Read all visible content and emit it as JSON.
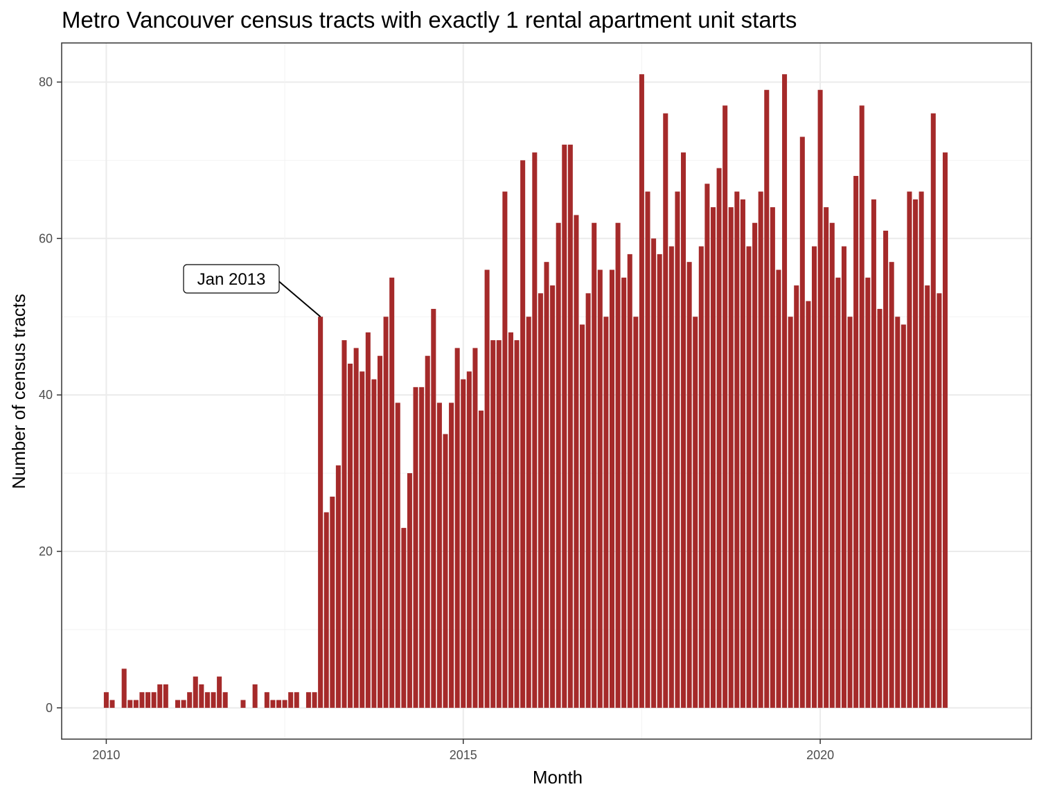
{
  "chart_data": {
    "type": "bar",
    "title": "Metro Vancouver census tracts with exactly 1 rental apartment unit starts",
    "xlabel": "Month",
    "ylabel": "Number of census tracts",
    "x_ticks": [
      "2010",
      "2015",
      "2020"
    ],
    "y_ticks": [
      "0",
      "20",
      "40",
      "60",
      "80"
    ],
    "ylim": [
      -4,
      85
    ],
    "xlim": [
      "2009-06",
      "2022-12"
    ],
    "grid": true,
    "bar_color": "#a52a2a",
    "start_month": "2010-01",
    "values": [
      2,
      1,
      0,
      5,
      1,
      1,
      2,
      2,
      2,
      3,
      3,
      0,
      1,
      1,
      2,
      4,
      3,
      2,
      2,
      4,
      2,
      0,
      0,
      1,
      0,
      3,
      0,
      2,
      1,
      1,
      1,
      2,
      2,
      0,
      2,
      2,
      50,
      25,
      27,
      31,
      47,
      44,
      46,
      43,
      48,
      42,
      45,
      50,
      55,
      39,
      23,
      30,
      41,
      41,
      45,
      51,
      39,
      35,
      39,
      46,
      42,
      43,
      46,
      38,
      56,
      47,
      47,
      66,
      48,
      47,
      70,
      50,
      71,
      53,
      57,
      54,
      62,
      72,
      72,
      63,
      49,
      53,
      62,
      56,
      50,
      56,
      62,
      55,
      58,
      50,
      81,
      66,
      60,
      58,
      76,
      59,
      66,
      71,
      57,
      50,
      59,
      67,
      64,
      69,
      77,
      64,
      66,
      65,
      59,
      62,
      66,
      79,
      64,
      56,
      81,
      50,
      54,
      73,
      52,
      59,
      79,
      64,
      62,
      55,
      59,
      50,
      68,
      77,
      55,
      65,
      51,
      61,
      57,
      50,
      49,
      66,
      65,
      66,
      54,
      76,
      53,
      71
    ],
    "annotations": [
      {
        "label": "Jan 2013",
        "target": "2013-01",
        "value": 50
      }
    ]
  }
}
